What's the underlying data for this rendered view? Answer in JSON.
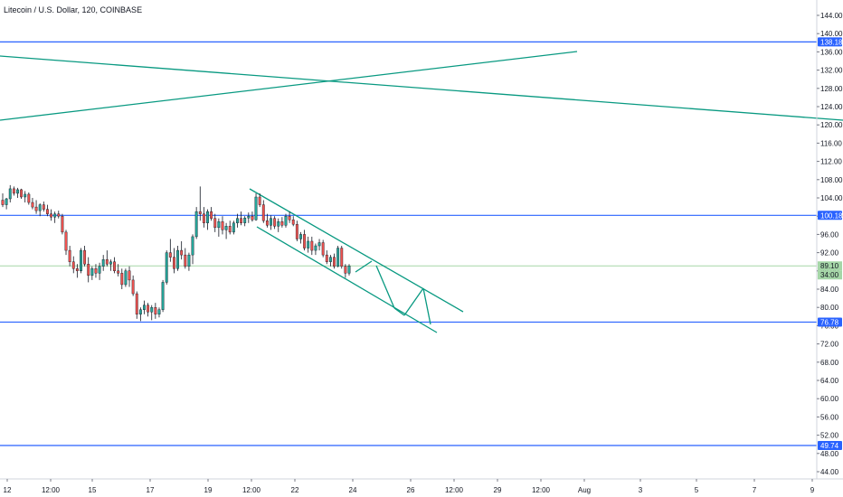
{
  "chart_data": {
    "type": "candlestick",
    "title": "Litecoin / U.S. Dollar, 120, COINBASE",
    "ylim": [
      42,
      146
    ],
    "y_ticks": [
      "144.00",
      "140.00",
      "136.00",
      "132.00",
      "128.00",
      "124.00",
      "120.00",
      "116.00",
      "112.00",
      "108.00",
      "104.00",
      "100.00",
      "96.00",
      "92.00",
      "88.00",
      "84.00",
      "80.00",
      "76.00",
      "72.00",
      "68.00",
      "64.00",
      "60.00",
      "56.00",
      "52.00",
      "48.00",
      "44.00"
    ],
    "x_ticks": [
      "12",
      "12:00",
      "15",
      "17",
      "19",
      "12:00",
      "22",
      "24",
      "26",
      "12:00",
      "29",
      "12:00",
      "Aug",
      "3",
      "5",
      "7",
      "9"
    ],
    "horizontal_levels": [
      {
        "value": 138.18,
        "label": "138.18",
        "color": "#2962ff"
      },
      {
        "value": 100.18,
        "label": "100.18",
        "color": "#2962ff"
      },
      {
        "value": 76.78,
        "label": "76.78",
        "color": "#2962ff"
      },
      {
        "value": 49.74,
        "label": "49.74",
        "color": "#2962ff"
      }
    ],
    "last_price": {
      "value": 89.1,
      "label": "89.10",
      "countdown": "34:00",
      "color": "#a5d6a7"
    },
    "colors": {
      "up": "#26a69a",
      "down": "#ef5350",
      "trend": "#089981",
      "level": "#2962ff"
    },
    "ohlc": [
      {
        "o": 103.5,
        "h": 105.0,
        "l": 102.0,
        "c": 102.5
      },
      {
        "o": 102.5,
        "h": 104.0,
        "l": 101.5,
        "c": 103.8
      },
      {
        "o": 103.8,
        "h": 106.8,
        "l": 103.0,
        "c": 106.0
      },
      {
        "o": 106.0,
        "h": 106.5,
        "l": 104.5,
        "c": 105.0
      },
      {
        "o": 105.0,
        "h": 106.2,
        "l": 104.0,
        "c": 105.8
      },
      {
        "o": 105.8,
        "h": 106.0,
        "l": 103.8,
        "c": 104.2
      },
      {
        "o": 104.2,
        "h": 105.5,
        "l": 103.0,
        "c": 104.8
      },
      {
        "o": 104.8,
        "h": 105.2,
        "l": 102.5,
        "c": 103.0
      },
      {
        "o": 103.0,
        "h": 104.0,
        "l": 101.5,
        "c": 102.0
      },
      {
        "o": 102.0,
        "h": 103.5,
        "l": 100.5,
        "c": 101.2
      },
      {
        "o": 101.2,
        "h": 102.8,
        "l": 100.0,
        "c": 102.5
      },
      {
        "o": 102.5,
        "h": 103.2,
        "l": 101.0,
        "c": 101.5
      },
      {
        "o": 101.5,
        "h": 102.5,
        "l": 100.0,
        "c": 100.5
      },
      {
        "o": 100.5,
        "h": 101.5,
        "l": 99.0,
        "c": 99.8
      },
      {
        "o": 99.8,
        "h": 101.0,
        "l": 98.5,
        "c": 100.5
      },
      {
        "o": 100.5,
        "h": 101.2,
        "l": 99.5,
        "c": 100.0
      },
      {
        "o": 100.0,
        "h": 100.5,
        "l": 96.0,
        "c": 96.5
      },
      {
        "o": 96.5,
        "h": 97.0,
        "l": 91.5,
        "c": 92.5
      },
      {
        "o": 92.5,
        "h": 93.5,
        "l": 89.0,
        "c": 90.0
      },
      {
        "o": 90.0,
        "h": 91.2,
        "l": 87.5,
        "c": 88.5
      },
      {
        "o": 88.5,
        "h": 89.5,
        "l": 86.5,
        "c": 88.0
      },
      {
        "o": 88.0,
        "h": 93.0,
        "l": 87.5,
        "c": 92.5
      },
      {
        "o": 92.5,
        "h": 93.5,
        "l": 89.0,
        "c": 89.5
      },
      {
        "o": 89.5,
        "h": 91.0,
        "l": 85.5,
        "c": 87.0
      },
      {
        "o": 87.0,
        "h": 89.0,
        "l": 86.0,
        "c": 88.5
      },
      {
        "o": 88.5,
        "h": 89.5,
        "l": 86.5,
        "c": 87.5
      },
      {
        "o": 87.5,
        "h": 89.8,
        "l": 86.0,
        "c": 89.0
      },
      {
        "o": 89.0,
        "h": 91.5,
        "l": 88.0,
        "c": 90.5
      },
      {
        "o": 90.5,
        "h": 92.5,
        "l": 89.0,
        "c": 89.5
      },
      {
        "o": 89.5,
        "h": 90.5,
        "l": 88.0,
        "c": 90.0
      },
      {
        "o": 90.0,
        "h": 91.0,
        "l": 87.5,
        "c": 88.0
      },
      {
        "o": 88.0,
        "h": 89.5,
        "l": 86.8,
        "c": 87.5
      },
      {
        "o": 87.5,
        "h": 88.5,
        "l": 84.0,
        "c": 85.0
      },
      {
        "o": 85.0,
        "h": 88.5,
        "l": 84.5,
        "c": 88.0
      },
      {
        "o": 88.0,
        "h": 89.0,
        "l": 84.5,
        "c": 86.0
      },
      {
        "o": 86.0,
        "h": 87.0,
        "l": 82.5,
        "c": 83.0
      },
      {
        "o": 83.0,
        "h": 83.5,
        "l": 77.5,
        "c": 78.5
      },
      {
        "o": 78.5,
        "h": 80.0,
        "l": 77.0,
        "c": 79.5
      },
      {
        "o": 79.5,
        "h": 81.5,
        "l": 78.5,
        "c": 80.5
      },
      {
        "o": 80.5,
        "h": 81.0,
        "l": 78.0,
        "c": 79.0
      },
      {
        "o": 79.0,
        "h": 80.5,
        "l": 77.2,
        "c": 80.0
      },
      {
        "o": 80.0,
        "h": 81.0,
        "l": 77.5,
        "c": 78.5
      },
      {
        "o": 78.5,
        "h": 80.0,
        "l": 77.8,
        "c": 79.5
      },
      {
        "o": 79.5,
        "h": 86.0,
        "l": 79.0,
        "c": 85.5
      },
      {
        "o": 85.5,
        "h": 92.5,
        "l": 85.0,
        "c": 92.0
      },
      {
        "o": 92.0,
        "h": 95.0,
        "l": 90.0,
        "c": 91.0
      },
      {
        "o": 91.0,
        "h": 93.0,
        "l": 87.5,
        "c": 88.5
      },
      {
        "o": 88.5,
        "h": 93.5,
        "l": 88.0,
        "c": 92.5
      },
      {
        "o": 92.5,
        "h": 94.5,
        "l": 90.5,
        "c": 91.5
      },
      {
        "o": 91.5,
        "h": 93.0,
        "l": 88.5,
        "c": 89.0
      },
      {
        "o": 89.0,
        "h": 92.0,
        "l": 88.0,
        "c": 91.5
      },
      {
        "o": 91.5,
        "h": 96.0,
        "l": 89.5,
        "c": 95.5
      },
      {
        "o": 95.5,
        "h": 102.0,
        "l": 95.0,
        "c": 101.0
      },
      {
        "o": 101.0,
        "h": 106.5,
        "l": 99.0,
        "c": 100.5
      },
      {
        "o": 100.5,
        "h": 102.0,
        "l": 97.5,
        "c": 98.5
      },
      {
        "o": 98.5,
        "h": 101.5,
        "l": 97.0,
        "c": 101.0
      },
      {
        "o": 101.0,
        "h": 102.0,
        "l": 99.0,
        "c": 99.5
      },
      {
        "o": 99.5,
        "h": 100.5,
        "l": 96.5,
        "c": 97.5
      },
      {
        "o": 97.5,
        "h": 99.5,
        "l": 95.5,
        "c": 98.8
      },
      {
        "o": 98.8,
        "h": 100.0,
        "l": 96.0,
        "c": 97.0
      },
      {
        "o": 97.0,
        "h": 98.5,
        "l": 95.0,
        "c": 97.8
      },
      {
        "o": 97.8,
        "h": 99.0,
        "l": 96.0,
        "c": 96.5
      },
      {
        "o": 96.5,
        "h": 99.0,
        "l": 96.0,
        "c": 98.5
      },
      {
        "o": 98.5,
        "h": 100.5,
        "l": 97.5,
        "c": 99.5
      },
      {
        "o": 99.5,
        "h": 101.0,
        "l": 98.0,
        "c": 98.5
      },
      {
        "o": 98.5,
        "h": 100.0,
        "l": 97.8,
        "c": 99.6
      },
      {
        "o": 99.6,
        "h": 100.8,
        "l": 98.5,
        "c": 100.0
      },
      {
        "o": 100.0,
        "h": 101.0,
        "l": 98.8,
        "c": 99.2
      },
      {
        "o": 99.2,
        "h": 105.0,
        "l": 99.0,
        "c": 104.2
      },
      {
        "o": 104.2,
        "h": 105.0,
        "l": 102.0,
        "c": 102.5
      },
      {
        "o": 102.5,
        "h": 103.5,
        "l": 98.5,
        "c": 99.0
      },
      {
        "o": 99.0,
        "h": 100.5,
        "l": 97.5,
        "c": 98.0
      },
      {
        "o": 98.0,
        "h": 100.2,
        "l": 97.0,
        "c": 99.5
      },
      {
        "o": 99.5,
        "h": 100.0,
        "l": 97.2,
        "c": 97.8
      },
      {
        "o": 97.8,
        "h": 99.5,
        "l": 96.5,
        "c": 98.8
      },
      {
        "o": 98.8,
        "h": 99.8,
        "l": 97.5,
        "c": 98.0
      },
      {
        "o": 98.0,
        "h": 100.5,
        "l": 97.5,
        "c": 100.0
      },
      {
        "o": 100.0,
        "h": 101.0,
        "l": 98.5,
        "c": 99.2
      },
      {
        "o": 99.2,
        "h": 100.0,
        "l": 97.8,
        "c": 98.2
      },
      {
        "o": 98.2,
        "h": 99.0,
        "l": 94.5,
        "c": 95.0
      },
      {
        "o": 95.0,
        "h": 96.5,
        "l": 94.0,
        "c": 96.0
      },
      {
        "o": 96.0,
        "h": 97.0,
        "l": 92.5,
        "c": 93.0
      },
      {
        "o": 93.0,
        "h": 95.5,
        "l": 92.0,
        "c": 94.5
      },
      {
        "o": 94.5,
        "h": 95.5,
        "l": 91.5,
        "c": 92.5
      },
      {
        "o": 92.5,
        "h": 94.0,
        "l": 91.5,
        "c": 93.5
      },
      {
        "o": 93.5,
        "h": 95.0,
        "l": 92.5,
        "c": 94.2
      },
      {
        "o": 94.2,
        "h": 94.8,
        "l": 91.0,
        "c": 91.5
      },
      {
        "o": 91.5,
        "h": 92.5,
        "l": 89.5,
        "c": 90.0
      },
      {
        "o": 90.0,
        "h": 91.5,
        "l": 89.0,
        "c": 91.0
      },
      {
        "o": 91.0,
        "h": 91.8,
        "l": 88.5,
        "c": 89.0
      },
      {
        "o": 89.0,
        "h": 93.5,
        "l": 88.8,
        "c": 93.0
      },
      {
        "o": 93.0,
        "h": 93.5,
        "l": 88.5,
        "c": 89.0
      },
      {
        "o": 89.0,
        "h": 89.5,
        "l": 86.5,
        "c": 87.5
      },
      {
        "o": 87.5,
        "h": 89.5,
        "l": 87.0,
        "c": 89.1
      }
    ]
  }
}
